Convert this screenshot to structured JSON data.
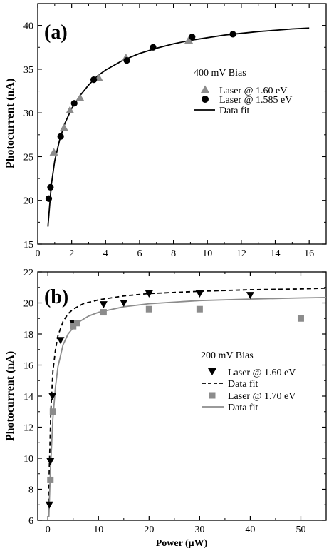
{
  "chart_data": [
    {
      "type": "scatter",
      "panel_label": "(a)",
      "ylabel": "Photocurrent (nA)",
      "xlabel": "",
      "xlim": [
        0,
        17
      ],
      "ylim": [
        15,
        42.5
      ],
      "x_ticks": [
        0,
        2,
        4,
        6,
        8,
        10,
        12,
        14,
        16
      ],
      "y_ticks": [
        15,
        20,
        25,
        30,
        35,
        40
      ],
      "legend_title": "400 mV Bias",
      "legend_position": "center-right",
      "grid": false,
      "series": [
        {
          "name": "Laser @ 1.60 eV",
          "marker": "triangle-up",
          "color": "#8c8c8c",
          "x": [
            0.95,
            1.55,
            1.9,
            2.5,
            3.6,
            5.2,
            8.9
          ],
          "y": [
            25.5,
            28.3,
            30.3,
            31.7,
            34.0,
            36.3,
            38.3
          ]
        },
        {
          "name": "Laser @ 1.585 eV",
          "marker": "circle",
          "color": "#000000",
          "x": [
            0.65,
            0.75,
            1.35,
            2.15,
            3.3,
            5.25,
            6.8,
            9.1,
            11.5
          ],
          "y": [
            20.2,
            21.5,
            27.3,
            31.1,
            33.8,
            36.0,
            37.5,
            38.7,
            39.0
          ]
        },
        {
          "name": "Data fit",
          "style": "solid-line",
          "color": "#000000",
          "x": [
            0.6,
            0.8,
            1.0,
            1.3,
            1.6,
            2.0,
            2.5,
            3.0,
            3.5,
            4.0,
            5.0,
            6.0,
            7.0,
            8.0,
            9.0,
            10.0,
            11.0,
            12.0,
            13.0,
            14.0,
            15.0,
            16.0
          ],
          "y": [
            17.0,
            21.8,
            24.5,
            27.0,
            28.8,
            30.5,
            32.0,
            33.2,
            34.2,
            34.9,
            36.0,
            36.8,
            37.4,
            37.9,
            38.3,
            38.6,
            38.9,
            39.1,
            39.3,
            39.45,
            39.6,
            39.7
          ]
        }
      ]
    },
    {
      "type": "scatter",
      "panel_label": "(b)",
      "ylabel": "Photocurrent (nA)",
      "xlabel": "Power (μW)",
      "xlim": [
        -2,
        55
      ],
      "ylim": [
        6,
        22
      ],
      "x_ticks": [
        0,
        10,
        20,
        30,
        40,
        50
      ],
      "y_ticks": [
        6,
        8,
        10,
        12,
        14,
        16,
        18,
        20,
        22
      ],
      "legend_title": "200 mV Bias",
      "legend_position": "center-right",
      "grid": false,
      "series": [
        {
          "name": "Laser @ 1.60 eV",
          "marker": "triangle-down",
          "color": "#000000",
          "x": [
            0.3,
            0.5,
            0.9,
            2.5,
            5.0,
            11.0,
            15.0,
            20.0,
            30.0,
            40.0
          ],
          "y": [
            7.0,
            9.8,
            14.0,
            17.6,
            18.7,
            19.9,
            20.0,
            20.6,
            20.6,
            20.5
          ]
        },
        {
          "name": "Data fit",
          "style": "dashed-line",
          "color": "#000000",
          "x": [
            0.1,
            0.3,
            0.6,
            1.0,
            1.5,
            2.0,
            3.0,
            4.0,
            5.0,
            7.0,
            10.0,
            15.0,
            20.0,
            30.0,
            40.0,
            50.0,
            55.0
          ],
          "y": [
            6.2,
            9.5,
            13.2,
            15.6,
            17.0,
            17.9,
            18.8,
            19.3,
            19.6,
            19.95,
            20.2,
            20.45,
            20.6,
            20.75,
            20.85,
            20.9,
            20.95
          ]
        },
        {
          "name": "Laser @ 1.70 eV",
          "marker": "square",
          "color": "#8c8c8c",
          "x": [
            0.5,
            1.0,
            5.0,
            5.8,
            11.0,
            20.0,
            30.0,
            50.0
          ],
          "y": [
            8.6,
            13.0,
            18.5,
            18.7,
            19.4,
            19.6,
            19.6,
            19.0
          ]
        },
        {
          "name": "Data fit",
          "style": "solid-line",
          "color": "#8c8c8c",
          "x": [
            0.2,
            0.5,
            1.0,
            1.5,
            2.0,
            3.0,
            4.0,
            5.0,
            6.0,
            8.0,
            10.0,
            15.0,
            20.0,
            30.0,
            40.0,
            50.0,
            55.0
          ],
          "y": [
            6.2,
            9.2,
            12.6,
            14.6,
            15.9,
            17.3,
            18.0,
            18.4,
            18.75,
            19.15,
            19.4,
            19.75,
            19.95,
            20.15,
            20.25,
            20.32,
            20.35
          ]
        }
      ]
    }
  ]
}
